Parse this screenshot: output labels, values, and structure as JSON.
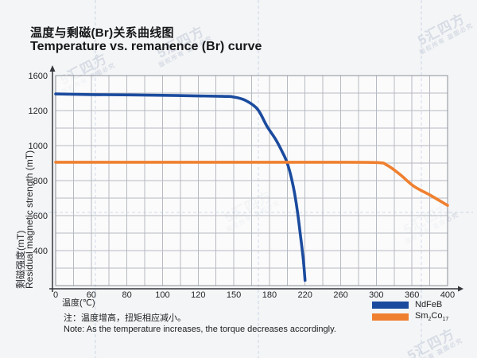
{
  "chart_data": {
    "type": "line",
    "title_zh": "温度与剩磁(Br)关系曲线图",
    "title_en": "Temperature vs. remanence (Br) curve",
    "xlabel": "温度(℃)",
    "ylabel_zh": "剩磁强度(mT)",
    "ylabel_en": "Residual magnetic strength (mT)",
    "x_ticks": [
      0,
      60,
      80,
      100,
      120,
      150,
      180,
      220,
      260,
      300,
      360,
      400
    ],
    "y_ticks": [
      1600,
      1200,
      1000,
      800,
      600,
      400,
      0
    ],
    "grid": true,
    "legend_position": "bottom-right",
    "series": [
      {
        "name": "NdFeB",
        "color": "#1b4b9e",
        "points": [
          [
            0,
            1390
          ],
          [
            60,
            1383
          ],
          [
            100,
            1375
          ],
          [
            140,
            1363
          ],
          [
            150,
            1355
          ],
          [
            160,
            1315
          ],
          [
            170,
            1215
          ],
          [
            178,
            1110
          ],
          [
            187,
            1035
          ],
          [
            194,
            968
          ],
          [
            200,
            900
          ],
          [
            206,
            785
          ],
          [
            211,
            640
          ],
          [
            215,
            480
          ],
          [
            218,
            300
          ],
          [
            220,
            60
          ]
        ]
      },
      {
        "name": "Sm2Co17",
        "color": "#ef8030",
        "points": [
          [
            0,
            905
          ],
          [
            80,
            905
          ],
          [
            160,
            905
          ],
          [
            240,
            905
          ],
          [
            300,
            903
          ],
          [
            318,
            888
          ],
          [
            340,
            835
          ],
          [
            362,
            768
          ],
          [
            380,
            718
          ],
          [
            400,
            658
          ]
        ]
      }
    ],
    "colors": {
      "plot_bg": "#fdfdfe",
      "grid": "#b6bac2",
      "border": "#8a8f97",
      "axis": "#33363b",
      "tick_text": "#222428",
      "dash": "#b9c8de"
    }
  },
  "legend": {
    "items": [
      {
        "label": "NdFeB",
        "color": "#1b4b9e"
      },
      {
        "p0": "Sm",
        "s0": "2",
        "p1": "Co",
        "s1": "17",
        "color": "#ef8030"
      }
    ]
  },
  "note": {
    "zh": "注：温度增高，扭矩相应减小。",
    "en": "Note: As the temperature increases, the torque decreases accordingly."
  },
  "watermark": {
    "line1": "5汇四方",
    "line2": "版权所有 盗图必究"
  }
}
